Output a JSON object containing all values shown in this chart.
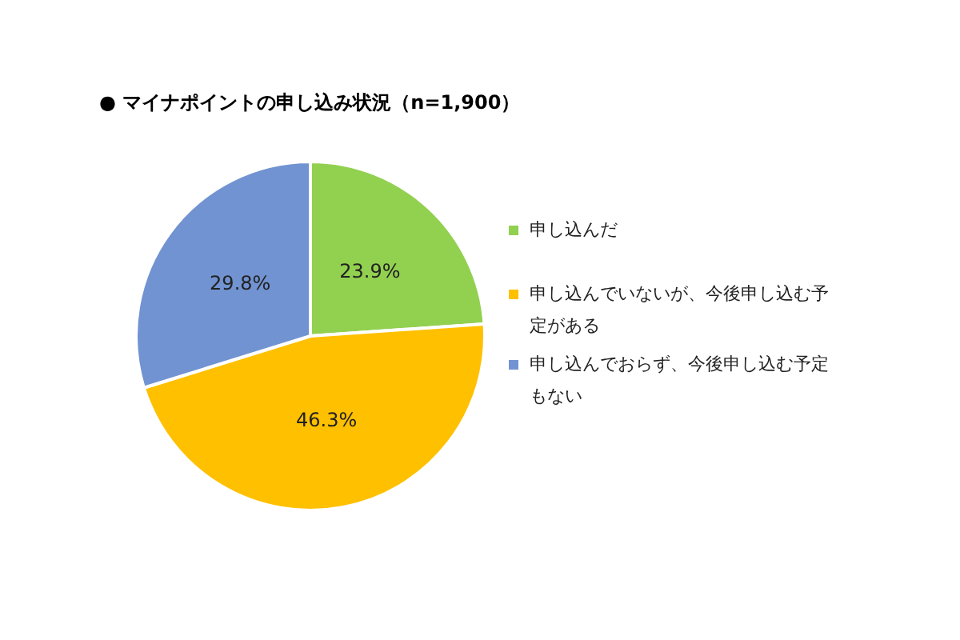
{
  "chart_data": {
    "type": "pie",
    "title": "● マイナポイントの申し込み状況（n=1,900）",
    "categories": [
      "申し込んだ",
      "申し込んでいないが、今後申し込む予定がある",
      "申し込んでおらず、今後申し込む予定もない"
    ],
    "values": [
      23.9,
      46.3,
      29.8
    ],
    "colors": [
      "#92d050",
      "#ffc000",
      "#7193d1"
    ],
    "value_labels": [
      "23.9%",
      "46.3%",
      "29.8%"
    ],
    "legend": "right"
  }
}
